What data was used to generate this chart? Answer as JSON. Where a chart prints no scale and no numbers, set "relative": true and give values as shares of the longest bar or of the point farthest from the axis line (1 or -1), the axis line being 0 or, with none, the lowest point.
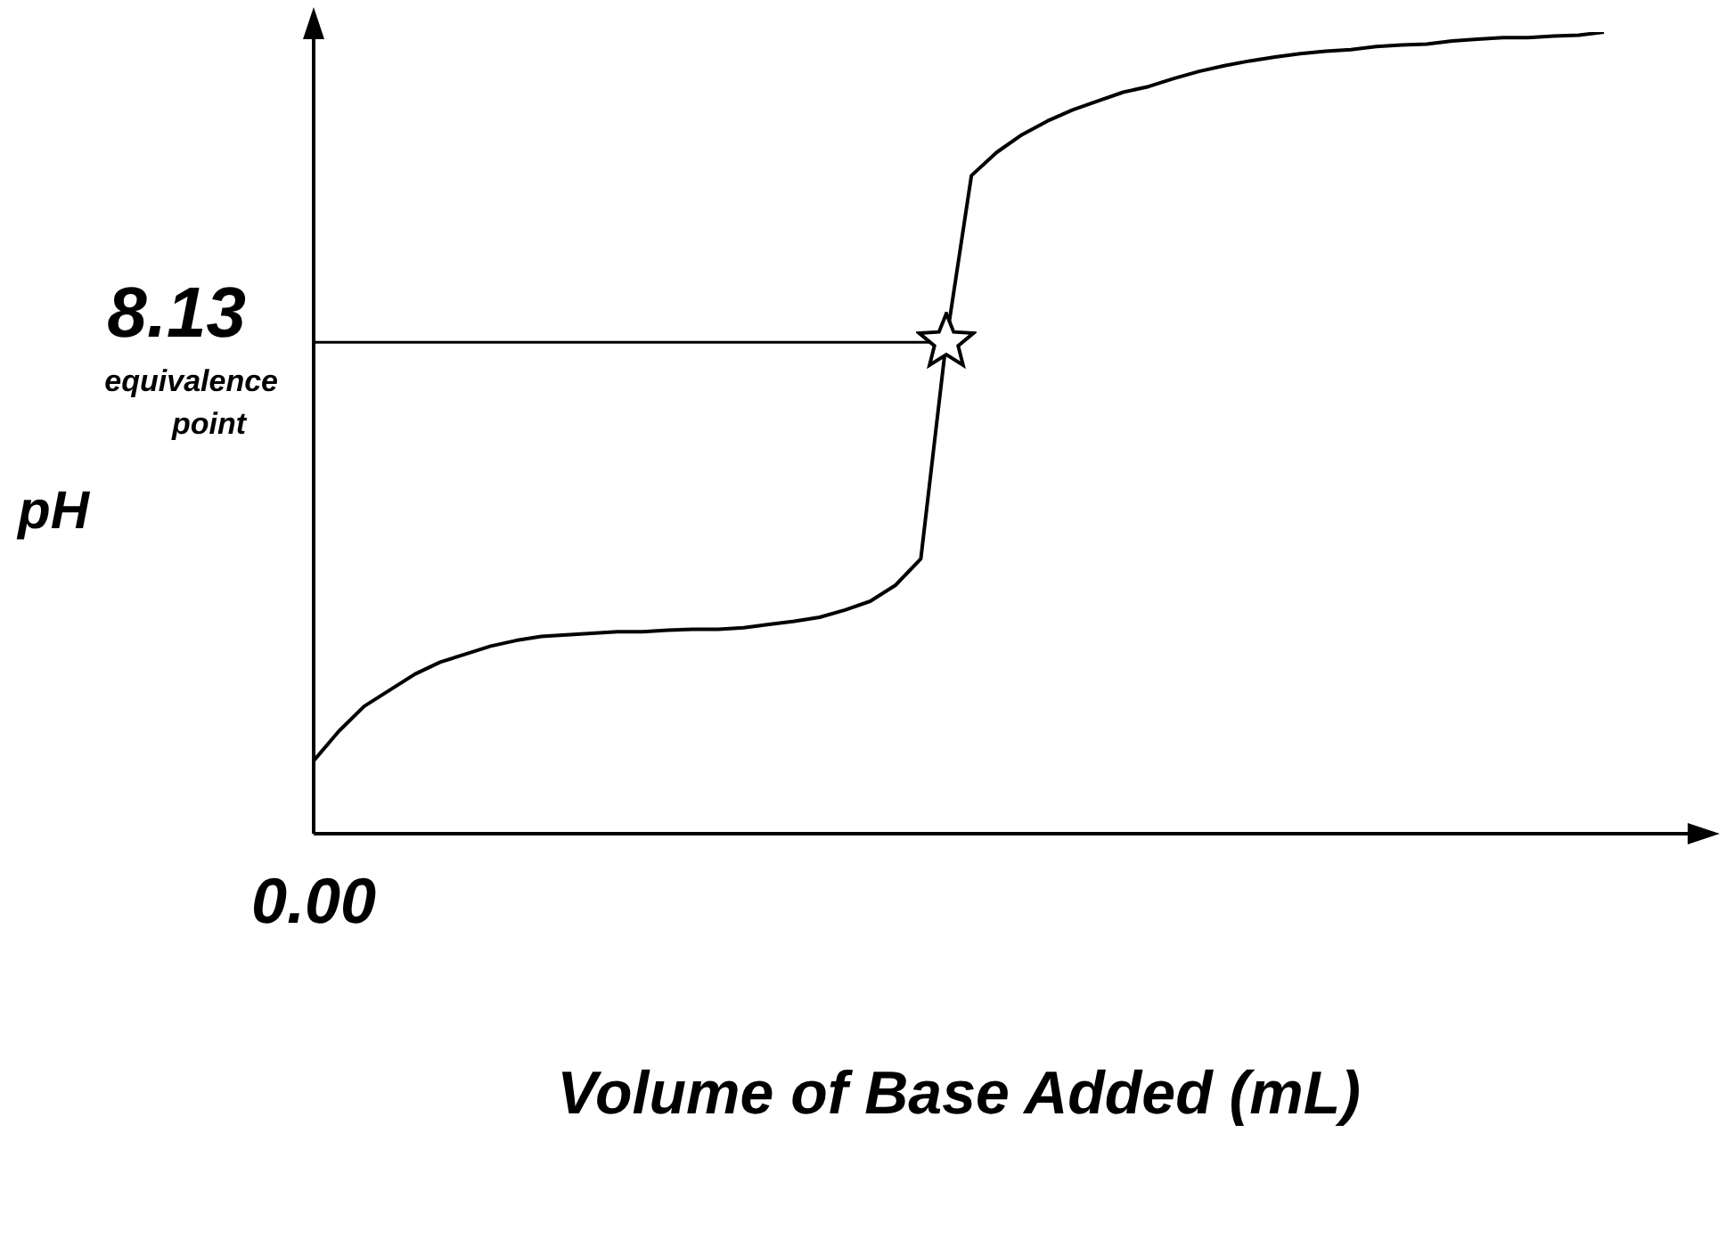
{
  "chart_data": {
    "type": "line",
    "xlabel": "Volume of Base Added (mL)",
    "ylabel": "pH",
    "relative": true,
    "grid": false,
    "legend": false,
    "categories": [
      null,
      null,
      null,
      null,
      null,
      null,
      null,
      null,
      null,
      null,
      null,
      null,
      null,
      null,
      null,
      null,
      null,
      null,
      null,
      null,
      null,
      null,
      null,
      null,
      null,
      null,
      null,
      null,
      null,
      null,
      null,
      null,
      null,
      null,
      null,
      null,
      null,
      null,
      null,
      null,
      null,
      null,
      null,
      null,
      null,
      null,
      null,
      null,
      null,
      null,
      null,
      null
    ],
    "series": [
      {
        "color": "#000000",
        "marker": "none",
        "line_style": "solid",
        "values": [
          0.091,
          0.128,
          0.159,
          0.179,
          0.199,
          0.214,
          0.224,
          0.234,
          0.241,
          0.246,
          0.248,
          0.25,
          0.252,
          0.252,
          0.254,
          0.255,
          0.255,
          0.257,
          0.261,
          0.265,
          0.27,
          0.279,
          0.29,
          0.31,
          0.343,
          0.613,
          0.821,
          0.85,
          0.872,
          0.889,
          0.903,
          0.914,
          0.925,
          0.932,
          0.942,
          0.951,
          0.958,
          0.964,
          0.969,
          0.973,
          0.976,
          0.978,
          0.982,
          0.984,
          0.985,
          0.989,
          0.991,
          0.993,
          0.993,
          0.995,
          0.996,
          1
        ]
      }
    ],
    "ref_lines": [
      {
        "axis": "y",
        "value": 0.613,
        "color": "#000000"
      }
    ],
    "annotations": [
      "8.13",
      "equivalence point",
      "0.00"
    ]
  }
}
